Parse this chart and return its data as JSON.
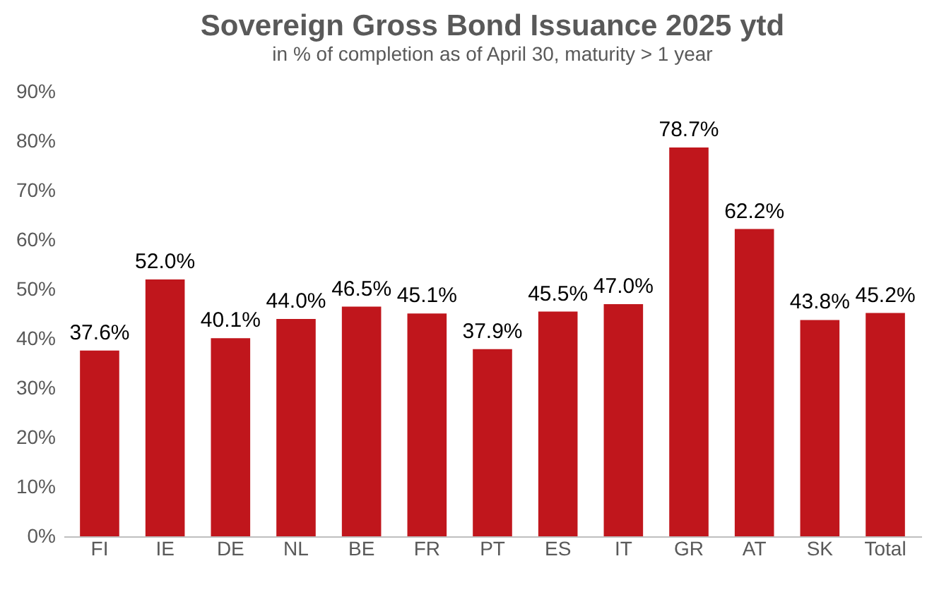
{
  "chart_data": {
    "type": "bar",
    "title": "Sovereign Gross Bond Issuance 2025 ytd",
    "subtitle": "in % of completion as of April 30, maturity > 1 year",
    "categories": [
      "FI",
      "IE",
      "DE",
      "NL",
      "BE",
      "FR",
      "PT",
      "ES",
      "IT",
      "GR",
      "AT",
      "SK",
      "Total"
    ],
    "values": [
      37.6,
      52.0,
      40.1,
      44.0,
      46.5,
      45.1,
      37.9,
      45.5,
      47.0,
      78.7,
      62.2,
      43.8,
      45.2
    ],
    "value_labels": [
      "37.6%",
      "52.0%",
      "40.1%",
      "44.0%",
      "46.5%",
      "45.1%",
      "37.9%",
      "45.5%",
      "47.0%",
      "78.7%",
      "62.2%",
      "43.8%",
      "45.2%"
    ],
    "color": "#c0161c",
    "ylim": [
      0,
      90
    ],
    "yticks": [
      {
        "value": 0,
        "label": "0%"
      },
      {
        "value": 10,
        "label": "10%"
      },
      {
        "value": 20,
        "label": "20%"
      },
      {
        "value": 30,
        "label": "30%"
      },
      {
        "value": 40,
        "label": "40%"
      },
      {
        "value": 50,
        "label": "50%"
      },
      {
        "value": 60,
        "label": "60%"
      },
      {
        "value": 70,
        "label": "70%"
      },
      {
        "value": 80,
        "label": "80%"
      },
      {
        "value": 90,
        "label": "90%"
      }
    ],
    "grid": false
  }
}
